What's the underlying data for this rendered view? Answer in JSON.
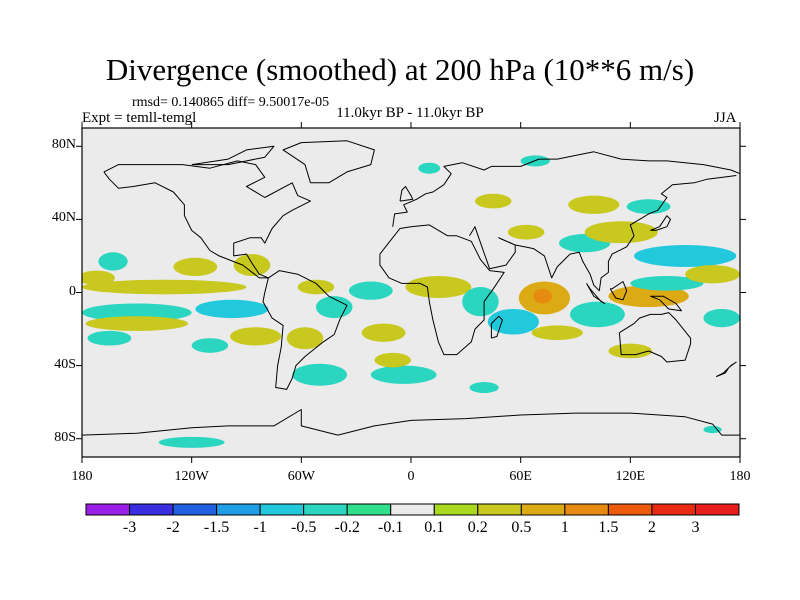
{
  "title": "Divergence (smoothed) at 200 hPa (10**6 m/s)",
  "stats": "rmsd= 0.140865 diff= 9.50017e-05",
  "expt": "Expt = temll-temgl",
  "period": "11.0kyr BP - 11.0kyr BP",
  "season": "JJA",
  "chart_data": {
    "type": "heatmap",
    "title": "Divergence (smoothed) at 200 hPa (10**6 m/s)",
    "projection": "cylindrical-equidistant",
    "xlim": [
      -180,
      180
    ],
    "ylim": [
      -90,
      90
    ],
    "x_tick_values": [
      -180,
      -120,
      -60,
      0,
      60,
      120,
      180
    ],
    "x_tick_labels": [
      "180",
      "120W",
      "60W",
      "0",
      "60E",
      "120E",
      "180"
    ],
    "y_tick_values": [
      80,
      40,
      0,
      -40,
      -80
    ],
    "y_tick_labels": [
      "80N",
      "40N",
      "0",
      "40S",
      "80S"
    ],
    "colorbar": {
      "labels": [
        "-3",
        "-2",
        "-1.5",
        "-1",
        "-0.5",
        "-0.2",
        "-0.1",
        "0.1",
        "0.2",
        "0.5",
        "1",
        "1.5",
        "2",
        "3"
      ],
      "colors": [
        "#9a1fe6",
        "#3a2ee0",
        "#1f5fe0",
        "#1f9de6",
        "#22c8dc",
        "#2ad6c0",
        "#2ee08c",
        "#ebebeb",
        "#a9d81e",
        "#c8c81e",
        "#dcaa14",
        "#e68a10",
        "#ec5a0c",
        "#e82a14",
        "#e81e1e"
      ]
    },
    "regions": [
      {
        "lon": -163,
        "lat": 17,
        "rx": 8,
        "ry": 5,
        "level": "-0.2"
      },
      {
        "lon": -172,
        "lat": 8,
        "rx": 10,
        "ry": 4,
        "level": "0.2"
      },
      {
        "lon": -118,
        "lat": 14,
        "rx": 12,
        "ry": 5,
        "level": "0.2"
      },
      {
        "lon": -87,
        "lat": 15,
        "rx": 10,
        "ry": 6,
        "level": "0.2"
      },
      {
        "lon": -135,
        "lat": 3,
        "rx": 45,
        "ry": 4,
        "level": "0.2"
      },
      {
        "lon": -150,
        "lat": -11,
        "rx": 30,
        "ry": 5,
        "level": "-0.2"
      },
      {
        "lon": -98,
        "lat": -9,
        "rx": 20,
        "ry": 5,
        "level": "-0.5"
      },
      {
        "lon": -150,
        "lat": -17,
        "rx": 28,
        "ry": 4,
        "level": "0.2"
      },
      {
        "lon": -165,
        "lat": -25,
        "rx": 12,
        "ry": 4,
        "level": "-0.2"
      },
      {
        "lon": -110,
        "lat": -29,
        "rx": 10,
        "ry": 4,
        "level": "-0.2"
      },
      {
        "lon": -85,
        "lat": -24,
        "rx": 14,
        "ry": 5,
        "level": "0.2"
      },
      {
        "lon": -58,
        "lat": -25,
        "rx": 10,
        "ry": 6,
        "level": "0.2"
      },
      {
        "lon": -42,
        "lat": -8,
        "rx": 10,
        "ry": 6,
        "level": "-0.2"
      },
      {
        "lon": -52,
        "lat": 3,
        "rx": 10,
        "ry": 4,
        "level": "0.2"
      },
      {
        "lon": -22,
        "lat": 1,
        "rx": 12,
        "ry": 5,
        "level": "-0.2"
      },
      {
        "lon": -15,
        "lat": -22,
        "rx": 12,
        "ry": 5,
        "level": "0.2"
      },
      {
        "lon": -50,
        "lat": -45,
        "rx": 15,
        "ry": 6,
        "level": "-0.2"
      },
      {
        "lon": -4,
        "lat": -45,
        "rx": 18,
        "ry": 5,
        "level": "-0.2"
      },
      {
        "lon": 15,
        "lat": 3,
        "rx": 18,
        "ry": 6,
        "level": "0.2"
      },
      {
        "lon": 38,
        "lat": -5,
        "rx": 10,
        "ry": 8,
        "level": "-0.2"
      },
      {
        "lon": 73,
        "lat": -3,
        "rx": 14,
        "ry": 9,
        "level": "0.5"
      },
      {
        "lon": 72,
        "lat": -2,
        "rx": 5,
        "ry": 4,
        "level": "1"
      },
      {
        "lon": 56,
        "lat": -16,
        "rx": 14,
        "ry": 7,
        "level": "-0.5"
      },
      {
        "lon": 80,
        "lat": -22,
        "rx": 14,
        "ry": 4,
        "level": "0.2"
      },
      {
        "lon": 102,
        "lat": -12,
        "rx": 15,
        "ry": 7,
        "level": "-0.2"
      },
      {
        "lon": 130,
        "lat": -2,
        "rx": 22,
        "ry": 6,
        "level": "0.5"
      },
      {
        "lon": 150,
        "lat": 20,
        "rx": 28,
        "ry": 6,
        "level": "-0.5"
      },
      {
        "lon": 95,
        "lat": 27,
        "rx": 14,
        "ry": 5,
        "level": "-0.2"
      },
      {
        "lon": 115,
        "lat": 33,
        "rx": 20,
        "ry": 6,
        "level": "0.2"
      },
      {
        "lon": 63,
        "lat": 33,
        "rx": 10,
        "ry": 4,
        "level": "0.2"
      },
      {
        "lon": 100,
        "lat": 48,
        "rx": 14,
        "ry": 5,
        "level": "0.2"
      },
      {
        "lon": 130,
        "lat": 47,
        "rx": 12,
        "ry": 4,
        "level": "-0.2"
      },
      {
        "lon": 140,
        "lat": 5,
        "rx": 20,
        "ry": 4,
        "level": "-0.2"
      },
      {
        "lon": 165,
        "lat": 10,
        "rx": 15,
        "ry": 5,
        "level": "0.2"
      },
      {
        "lon": 170,
        "lat": -14,
        "rx": 10,
        "ry": 5,
        "level": "-0.2"
      },
      {
        "lon": 45,
        "lat": 50,
        "rx": 10,
        "ry": 4,
        "level": "0.2"
      },
      {
        "lon": 68,
        "lat": 72,
        "rx": 8,
        "ry": 3,
        "level": "-0.2"
      },
      {
        "lon": 10,
        "lat": 68,
        "rx": 6,
        "ry": 3,
        "level": "-0.2"
      },
      {
        "lon": -10,
        "lat": -37,
        "rx": 10,
        "ry": 4,
        "level": "0.2"
      },
      {
        "lon": 120,
        "lat": -32,
        "rx": 12,
        "ry": 4,
        "level": "0.2"
      },
      {
        "lon": -120,
        "lat": -82,
        "rx": 18,
        "ry": 3,
        "level": "-0.2"
      },
      {
        "lon": 40,
        "lat": -52,
        "rx": 8,
        "ry": 3,
        "level": "-0.2"
      },
      {
        "lon": 165,
        "lat": -75,
        "rx": 5,
        "ry": 2,
        "level": "-0.2"
      }
    ]
  }
}
